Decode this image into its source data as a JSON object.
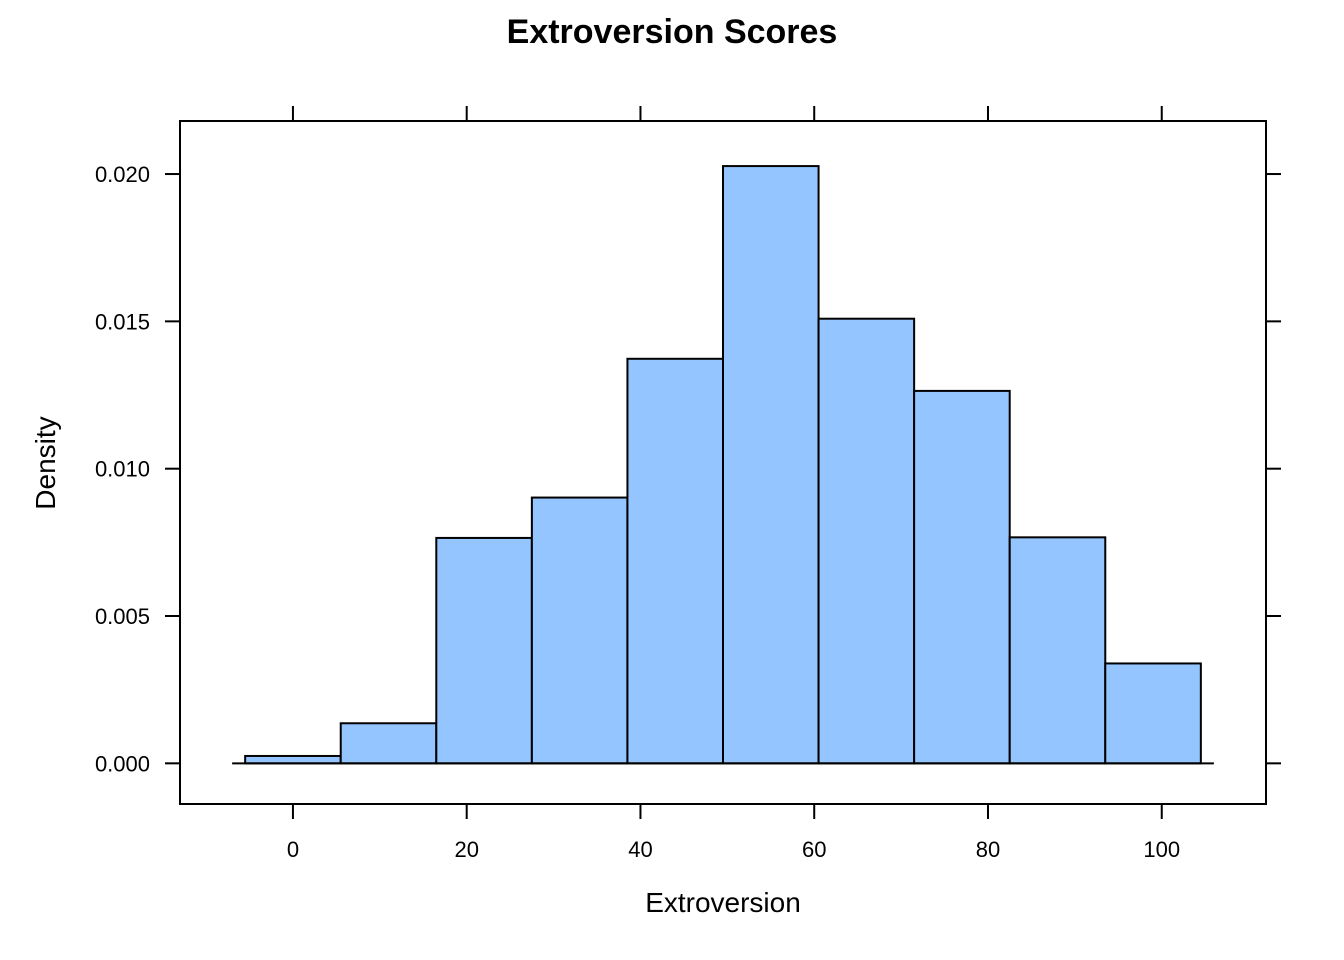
{
  "chart_data": {
    "type": "bar",
    "title": "Extroversion Scores",
    "xlabel": "Extroversion",
    "ylabel": "Density",
    "xlim": [
      -13,
      112
    ],
    "ylim": [
      -0.00138,
      0.0218
    ],
    "x_ticks": [
      0,
      20,
      40,
      60,
      80,
      100
    ],
    "x_tick_labels": [
      "0",
      "20",
      "40",
      "60",
      "80",
      "100"
    ],
    "y_ticks": [
      0,
      0.005,
      0.01,
      0.015,
      0.02
    ],
    "y_tick_labels": [
      "0.000",
      "0.005",
      "0.010",
      "0.015",
      "0.020"
    ],
    "bins": [
      {
        "start": -5.5,
        "end": 5.5,
        "density": 0.00025
      },
      {
        "start": 5.5,
        "end": 16.5,
        "density": 0.00136
      },
      {
        "start": 16.5,
        "end": 27.5,
        "density": 0.00765
      },
      {
        "start": 27.5,
        "end": 38.5,
        "density": 0.00902
      },
      {
        "start": 38.5,
        "end": 49.5,
        "density": 0.01373
      },
      {
        "start": 49.5,
        "end": 60.5,
        "density": 0.02027
      },
      {
        "start": 60.5,
        "end": 71.5,
        "density": 0.01509
      },
      {
        "start": 71.5,
        "end": 82.5,
        "density": 0.01264
      },
      {
        "start": 82.5,
        "end": 93.5,
        "density": 0.00767
      },
      {
        "start": 93.5,
        "end": 104.5,
        "density": 0.00339
      }
    ],
    "baseline_range": [
      -7,
      106
    ],
    "bar_color": "#94c5ff",
    "grid": false,
    "legend": "none"
  }
}
